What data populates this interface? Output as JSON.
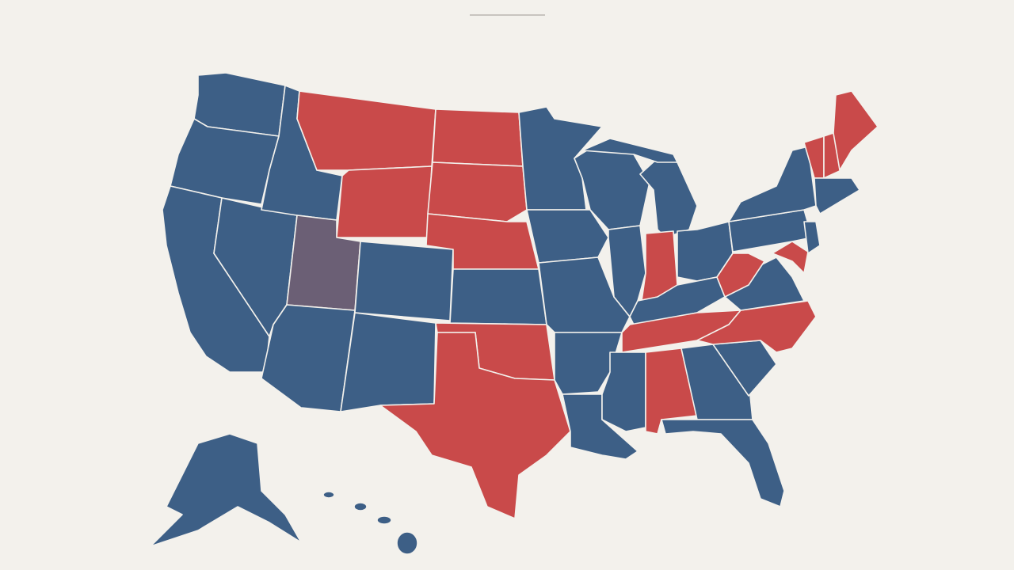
{
  "map": {
    "fills": [
      "#3d5f86",
      "#c94a4a",
      "#6b5f75"
    ]
  }
}
